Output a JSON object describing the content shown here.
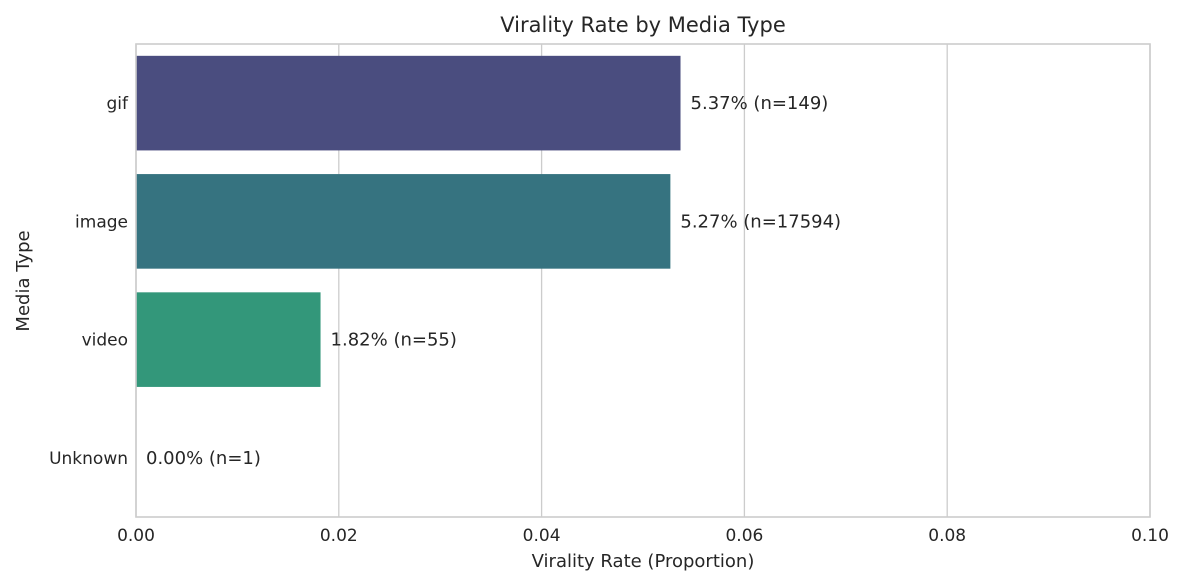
{
  "chart_data": {
    "type": "bar",
    "orientation": "horizontal",
    "title": "Virality Rate by Media Type",
    "xlabel": "Virality Rate (Proportion)",
    "ylabel": "Media Type",
    "categories": [
      "gif",
      "image",
      "video",
      "Unknown"
    ],
    "values": [
      0.0537,
      0.0527,
      0.0182,
      0.0
    ],
    "data_labels": [
      "5.37% (n=149)",
      "5.27% (n=17594)",
      "1.82% (n=55)",
      "0.00% (n=1)"
    ],
    "colors": [
      "#4a4d7f",
      "#367380",
      "#33977a",
      "#6ccb5f"
    ],
    "xlim": [
      0,
      0.1
    ],
    "xticks": [
      0,
      0.02,
      0.04,
      0.06,
      0.08,
      0.1
    ],
    "xtick_labels": [
      "0.00",
      "0.02",
      "0.04",
      "0.06",
      "0.08",
      "0.10"
    ],
    "grid": true
  }
}
